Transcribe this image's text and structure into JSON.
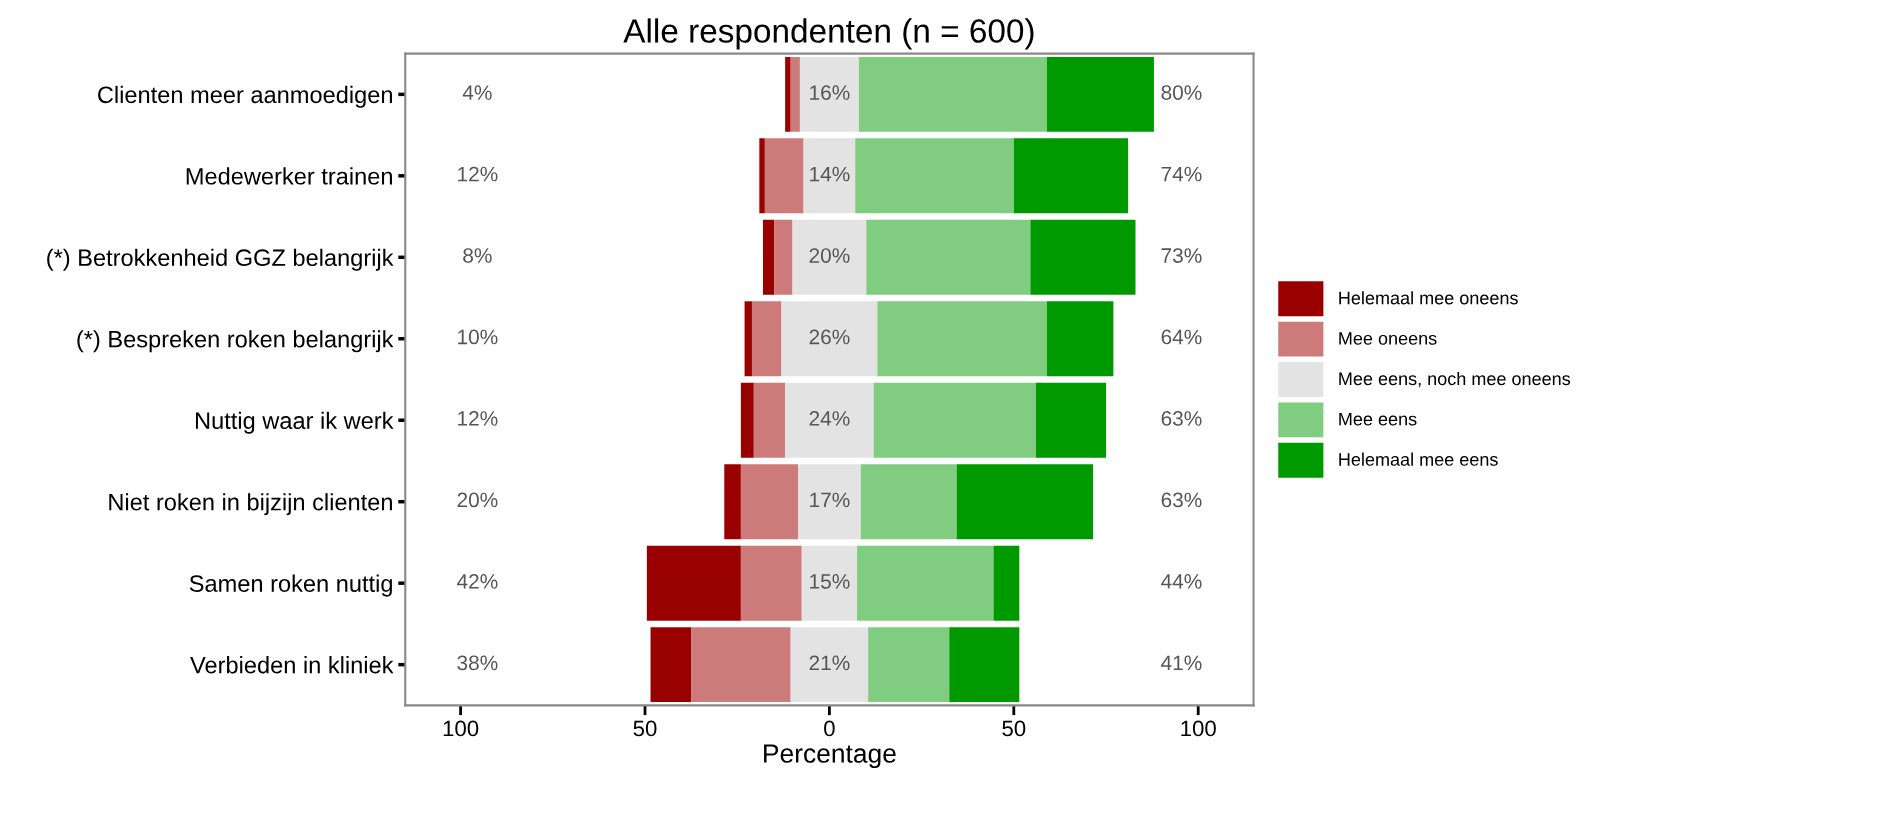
{
  "chart_data": {
    "type": "bar",
    "orientation": "horizontal",
    "title": "Alle respondenten (n = 600)",
    "xlabel": "Percentage",
    "categories": [
      "Clienten meer aanmoedigen",
      "Medewerker trainen",
      "(*) Betrokkenheid GGZ belangrijk",
      "(*) Bespreken roken belangrijk",
      "Nuttig waar ik werk",
      "Niet roken in bijzijn clienten",
      "Samen roken nuttig",
      "Verbieden in kliniek"
    ],
    "series": [
      {
        "name": "Helemaal mee oneens",
        "color": "#990000",
        "values": [
          1.5,
          1.5,
          3,
          2,
          3.5,
          4.5,
          25.5,
          11
        ],
        "base": [
          -12,
          -19,
          -18,
          -23,
          -24,
          -28.5,
          -49.5,
          -48.5
        ]
      },
      {
        "name": "Mee oneens",
        "color": "#cc7a7a",
        "values": [
          2.5,
          10.5,
          5,
          8,
          8.5,
          15.5,
          16.5,
          27
        ],
        "base": [
          -10.5,
          -17.5,
          -15,
          -21,
          -20.5,
          -24,
          -24,
          -37.5
        ]
      },
      {
        "name": "Mee eens, noch mee oneens",
        "color": "#e3e3e3",
        "values": [
          16,
          14,
          20,
          26,
          24,
          17,
          15,
          21
        ],
        "base": [
          -8,
          -7,
          -10,
          -13,
          -12,
          -8.5,
          -7.5,
          -10.5
        ],
        "value_labels": [
          "16%",
          "14%",
          "20%",
          "26%",
          "24%",
          "17%",
          "15%",
          "21%"
        ]
      },
      {
        "name": "Mee eens",
        "color": "#80cc80",
        "values": [
          51,
          43,
          44.5,
          46,
          44,
          26,
          37,
          22
        ],
        "base": [
          8,
          7,
          10,
          13,
          12,
          8.5,
          7.5,
          10.5
        ]
      },
      {
        "name": "Helemaal mee eens",
        "color": "#009900",
        "values": [
          29,
          31,
          28.5,
          18,
          19,
          37,
          7,
          19
        ],
        "base": [
          59,
          50,
          54.5,
          59,
          56,
          34.5,
          44.5,
          32.5
        ]
      }
    ],
    "annotations": [
      "4%",
      "12%",
      "8%",
      "10%",
      "12%",
      "20%",
      "42%",
      "38%",
      "80%",
      "74%",
      "73%",
      "64%",
      "63%",
      "63%",
      "44%",
      "41%"
    ],
    "xlim": [
      -115,
      115
    ],
    "xticks": [
      {
        "value": -100,
        "label": "100"
      },
      {
        "value": -50,
        "label": "50"
      },
      0,
      50,
      100
    ],
    "grid": false,
    "legend": "right"
  }
}
